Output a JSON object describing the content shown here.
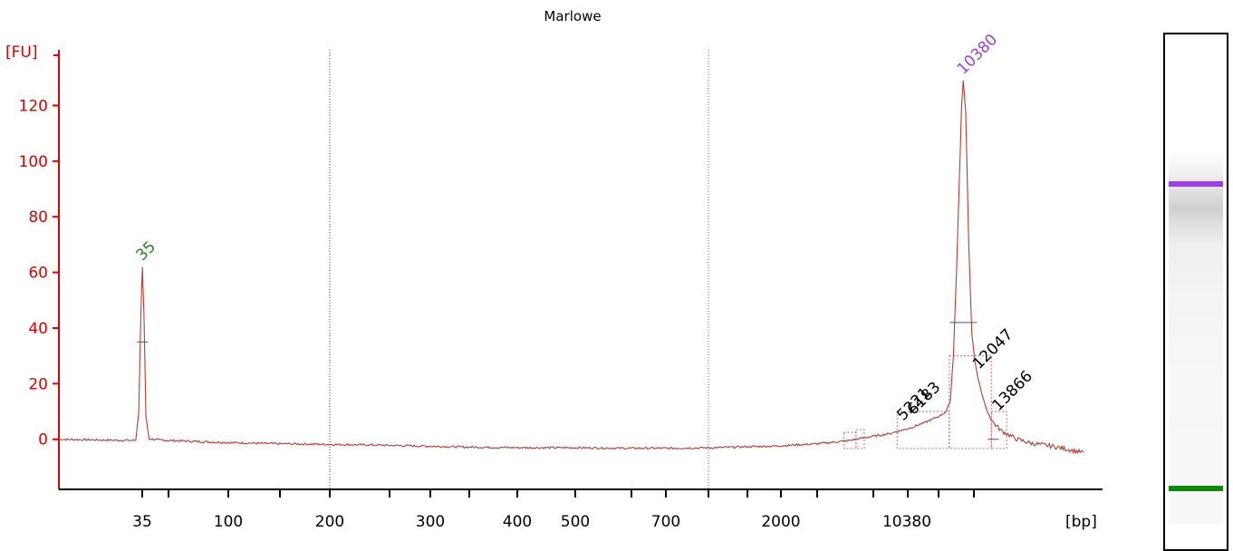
{
  "chart_data": {
    "type": "line",
    "title": "Marlowe",
    "ylabel": "[FU]",
    "xlabel": "[bp]",
    "ylim": [
      -18,
      140
    ],
    "yticks": [
      0,
      20,
      40,
      60,
      80,
      100,
      120
    ],
    "xtick_labels": [
      "35",
      "100",
      "200",
      "300",
      "400",
      "500",
      "700",
      "2000",
      "10380"
    ],
    "series": [
      {
        "color": "#c0392b",
        "points": [
          [
            0.0,
            0.0
          ],
          [
            0.05,
            -0.3
          ],
          [
            0.075,
            -0.4
          ],
          [
            0.078,
            10
          ],
          [
            0.08,
            45
          ],
          [
            0.0815,
            62
          ],
          [
            0.083,
            45
          ],
          [
            0.085,
            8
          ],
          [
            0.088,
            0.2
          ],
          [
            0.1,
            -0.3
          ],
          [
            0.15,
            -1.0
          ],
          [
            0.2,
            -1.5
          ],
          [
            0.26,
            -1.8
          ],
          [
            0.3,
            -2.0
          ],
          [
            0.35,
            -2.4
          ],
          [
            0.4,
            -2.8
          ],
          [
            0.45,
            -3.0
          ],
          [
            0.5,
            -3.0
          ],
          [
            0.55,
            -3.2
          ],
          [
            0.6,
            -3.2
          ],
          [
            0.64,
            -3.0
          ],
          [
            0.66,
            -2.8
          ],
          [
            0.7,
            -2.4
          ],
          [
            0.74,
            -1.6
          ],
          [
            0.77,
            -0.5
          ],
          [
            0.79,
            0.8
          ],
          [
            0.81,
            2.0
          ],
          [
            0.83,
            4.0
          ],
          [
            0.845,
            6.0
          ],
          [
            0.86,
            8.5
          ],
          [
            0.866,
            10
          ],
          [
            0.87,
            14
          ],
          [
            0.873,
            30
          ],
          [
            0.876,
            60
          ],
          [
            0.879,
            95
          ],
          [
            0.881,
            120
          ],
          [
            0.8827,
            129
          ],
          [
            0.885,
            118
          ],
          [
            0.888,
            70
          ],
          [
            0.891,
            38
          ],
          [
            0.894,
            28
          ],
          [
            0.897,
            22
          ],
          [
            0.901,
            16
          ],
          [
            0.906,
            10
          ],
          [
            0.912,
            6
          ],
          [
            0.92,
            3
          ],
          [
            0.935,
            0
          ],
          [
            0.95,
            -1.5
          ],
          [
            0.97,
            -2.5
          ],
          [
            1.0,
            -4.8
          ]
        ]
      }
    ],
    "peak_labels": [
      {
        "label": "35",
        "x": 0.0815,
        "y": 62,
        "color": "#1a8a1a"
      },
      {
        "label": "10380",
        "x": 0.8827,
        "y": 129,
        "color": "#9b3fe6"
      },
      {
        "label": "5221",
        "x": 0.824,
        "y": 4.5,
        "color": "#000000"
      },
      {
        "label": "6183",
        "x": 0.834,
        "y": 6.5,
        "color": "#000000"
      },
      {
        "label": "12047",
        "x": 0.898,
        "y": 23,
        "color": "#000000"
      },
      {
        "label": "13866",
        "x": 0.917,
        "y": 8,
        "color": "#000000"
      }
    ],
    "markers": [
      {
        "x": 0.0815,
        "y": 35
      },
      {
        "x": 0.8827,
        "y": 42
      },
      {
        "x": 0.912,
        "y": 0
      }
    ],
    "colors": {
      "axis": "#e00000",
      "line": "#c0392b",
      "marker_purple": "#9b3fe6",
      "marker_green": "#1a8a1a"
    },
    "gel": {
      "upper_band_color": "#9b3fe6",
      "lower_band_color": "#0a8a0a"
    }
  }
}
